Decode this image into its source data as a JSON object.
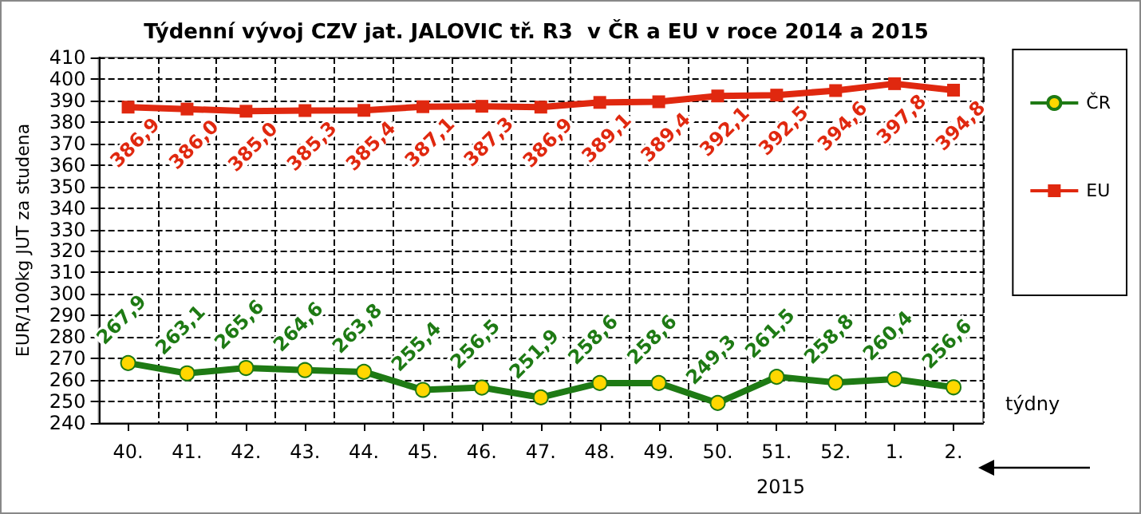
{
  "chart_data": {
    "type": "line",
    "title": "Týdenní vývoj CZV jat. JALOVIC tř. R3  v ČR a EU v roce 2014 a 2015",
    "xlabel": "týdny",
    "ylabel": "EUR/100kg JUT za studena",
    "categories": [
      "40.",
      "41.",
      "42.",
      "43.",
      "44.",
      "45.",
      "46.",
      "47.",
      "48.",
      "49.",
      "50.",
      "51.",
      "52.",
      "1.",
      "2."
    ],
    "series": [
      {
        "name": "ČR",
        "color": "#1e7a14",
        "marker": "circle",
        "values": [
          267.9,
          263.1,
          265.6,
          264.6,
          263.8,
          255.4,
          256.5,
          251.9,
          258.6,
          258.6,
          249.3,
          261.5,
          258.8,
          260.4,
          256.6
        ],
        "value_labels": [
          "267,9",
          "263,1",
          "265,6",
          "264,6",
          "263,8",
          "255,4",
          "256,5",
          "251,9",
          "258,6",
          "258,6",
          "249,3",
          "261,5",
          "258,8",
          "260,4",
          "256,6"
        ]
      },
      {
        "name": "EU",
        "color": "#e0280f",
        "marker": "square",
        "values": [
          386.9,
          386.0,
          385.0,
          385.3,
          385.4,
          387.1,
          387.3,
          386.9,
          389.1,
          389.4,
          392.1,
          392.5,
          394.6,
          397.8,
          394.8
        ],
        "value_labels": [
          "386,9",
          "386,0",
          "385,0",
          "385,3",
          "385,4",
          "387,1",
          "387,3",
          "386,9",
          "389,1",
          "389,4",
          "392,1",
          "392,5",
          "394,6",
          "397,8",
          "394,8"
        ]
      }
    ],
    "ylim": [
      240,
      410
    ],
    "yticks": [
      240,
      250,
      260,
      270,
      280,
      290,
      300,
      310,
      320,
      330,
      340,
      350,
      360,
      370,
      380,
      390,
      400,
      410
    ],
    "grid": true,
    "legend": "right",
    "line_style": "solid",
    "annotations": [
      "2015"
    ]
  }
}
